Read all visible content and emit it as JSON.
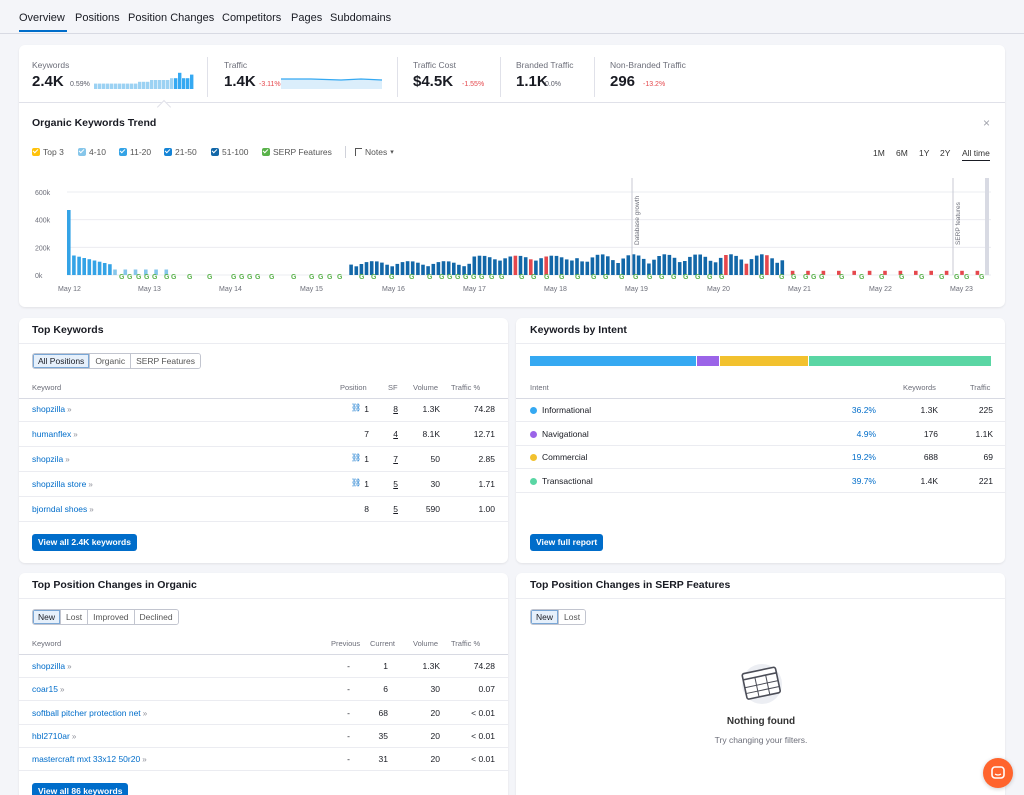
{
  "tabs": [
    "Overview",
    "Positions",
    "Position Changes",
    "Competitors",
    "Pages",
    "Subdomains"
  ],
  "kpis": [
    {
      "label": "Keywords",
      "value": "2.4K",
      "delta": "0.59%",
      "delta_color": "#5a5c68",
      "spark": [
        3,
        3,
        3,
        3,
        3,
        3,
        3,
        3,
        3,
        3,
        3,
        4,
        4,
        4,
        5,
        5,
        5,
        5,
        5,
        6,
        6,
        9,
        6,
        6,
        8
      ]
    },
    {
      "label": "Traffic",
      "value": "1.4K",
      "delta": "-3.11%",
      "delta_color": "#e5484d"
    },
    {
      "label": "Traffic Cost",
      "value": "$4.5K",
      "delta": "-1.55%",
      "delta_color": "#e5484d"
    },
    {
      "label": "Branded Traffic",
      "value": "1.1K",
      "delta": "0.0%",
      "delta_color": "#5a5c68"
    },
    {
      "label": "Non-Branded Traffic",
      "value": "296",
      "delta": "-13.2%",
      "delta_color": "#e5484d"
    }
  ],
  "trend": {
    "title": "Organic Keywords Trend",
    "close_icon": "×",
    "legend": [
      {
        "label": "Top 3",
        "color": "#ffc20a"
      },
      {
        "label": "4-10",
        "color": "#86c6ea"
      },
      {
        "label": "11-20",
        "color": "#34a3e6"
      },
      {
        "label": "21-50",
        "color": "#1584d6"
      },
      {
        "label": "51-100",
        "color": "#1267a8"
      },
      {
        "label": "SERP Features",
        "color": "#59b24a"
      }
    ],
    "notes": "Notes",
    "ranges": [
      "1M",
      "6M",
      "1Y",
      "2Y",
      "All time"
    ],
    "active_range": "All time"
  },
  "chart_data": {
    "type": "bar",
    "yticks": [
      "600k",
      "400k",
      "200k",
      "0k"
    ],
    "ylim": [
      0,
      600000
    ],
    "xticks": [
      "May 12",
      "May 13",
      "May 14",
      "May 15",
      "May 16",
      "May 17",
      "May 18",
      "May 19",
      "May 20",
      "May 21",
      "May 22",
      "May 23"
    ],
    "annotations": [
      "Database growth",
      "SERP features"
    ],
    "bar_count": 180
  },
  "top_keywords": {
    "title": "Top Keywords",
    "filters": [
      "All Positions",
      "Organic",
      "SERP Features"
    ],
    "columns": [
      "Keyword",
      "Position",
      "SF",
      "Volume",
      "Traffic %"
    ],
    "rows": [
      {
        "keyword": "shopzilla",
        "link_icon": true,
        "position": "1",
        "sf": "8",
        "volume": "1.3K",
        "traffic": "74.28"
      },
      {
        "keyword": "humanflex",
        "link_icon": false,
        "position": "7",
        "sf": "4",
        "volume": "8.1K",
        "traffic": "12.71"
      },
      {
        "keyword": "shopzila",
        "link_icon": true,
        "position": "1",
        "sf": "7",
        "volume": "50",
        "traffic": "2.85"
      },
      {
        "keyword": "shopzilla store",
        "link_icon": true,
        "position": "1",
        "sf": "5",
        "volume": "30",
        "traffic": "1.71"
      },
      {
        "keyword": "bjorndal shoes",
        "link_icon": false,
        "position": "8",
        "sf": "5",
        "volume": "590",
        "traffic": "1.00"
      }
    ],
    "button": "View all 2.4K keywords"
  },
  "intent": {
    "title": "Keywords by Intent",
    "columns": [
      "Intent",
      "Keywords",
      "Traffic"
    ],
    "rows": [
      {
        "name": "Informational",
        "color": "#35a9f2",
        "share": "36.2%",
        "share_value": 36.2,
        "keywords": "1.3K",
        "traffic": "225"
      },
      {
        "name": "Navigational",
        "color": "#9b64e8",
        "share": "4.9%",
        "share_value": 4.9,
        "keywords": "176",
        "traffic": "1.1K"
      },
      {
        "name": "Commercial",
        "color": "#f2c12e",
        "share": "19.2%",
        "share_value": 19.2,
        "keywords": "688",
        "traffic": "69"
      },
      {
        "name": "Transactional",
        "color": "#5ad6a4",
        "share": "39.7%",
        "share_value": 39.7,
        "keywords": "1.4K",
        "traffic": "221"
      }
    ],
    "button": "View full report"
  },
  "organic_changes": {
    "title": "Top Position Changes in Organic",
    "filters": [
      "New",
      "Lost",
      "Improved",
      "Declined"
    ],
    "columns": [
      "Keyword",
      "Previous",
      "Current",
      "Volume",
      "Traffic %"
    ],
    "rows": [
      {
        "keyword": "shopzilla",
        "previous": "-",
        "current": "1",
        "volume": "1.3K",
        "traffic": "74.28"
      },
      {
        "keyword": "coar15",
        "previous": "-",
        "current": "6",
        "volume": "30",
        "traffic": "0.07"
      },
      {
        "keyword": "softball pitcher protection net",
        "previous": "-",
        "current": "68",
        "volume": "20",
        "traffic": "< 0.01"
      },
      {
        "keyword": "hbl2710ar",
        "previous": "-",
        "current": "35",
        "volume": "20",
        "traffic": "< 0.01"
      },
      {
        "keyword": "mastercraft mxt 33x12 50r20",
        "previous": "-",
        "current": "31",
        "volume": "20",
        "traffic": "< 0.01"
      }
    ],
    "button": "View all 86 keywords"
  },
  "serp_changes": {
    "title": "Top Position Changes in SERP Features",
    "filters": [
      "New",
      "Lost"
    ],
    "empty_title": "Nothing found",
    "empty_sub": "Try changing your filters."
  }
}
